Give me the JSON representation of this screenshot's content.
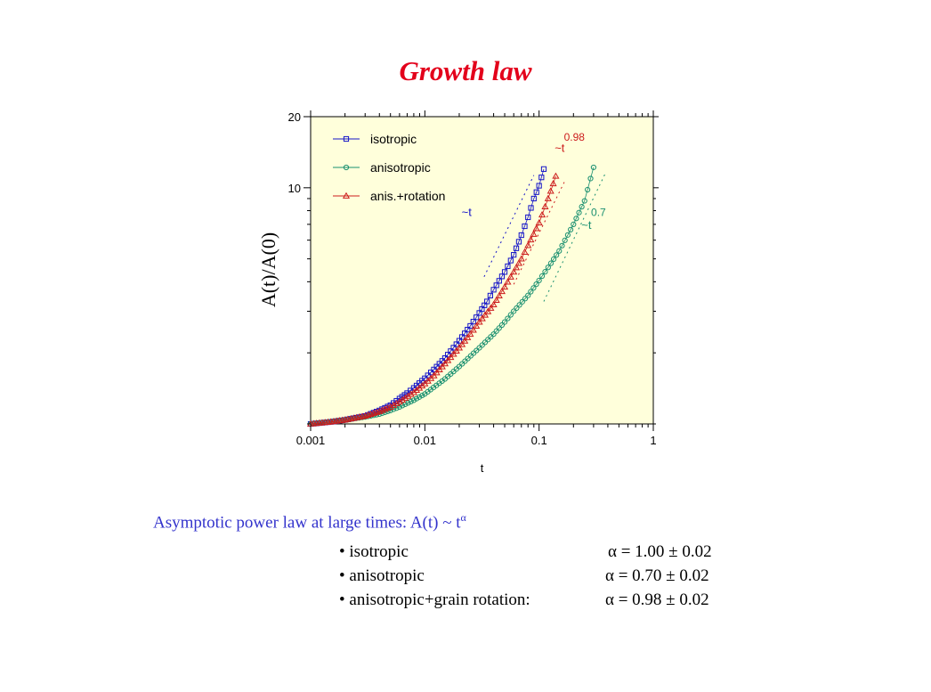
{
  "title": "Growth law",
  "chart_data": {
    "type": "scatter",
    "xscale": "log",
    "yscale": "log",
    "xlim": [
      0.001,
      1
    ],
    "ylim": [
      1,
      20
    ],
    "xlabel": "t",
    "ylabel": "A(t)/A(0)",
    "xticks": [
      "0.001",
      "0.01",
      "0.1",
      "1"
    ],
    "yticks": [
      "10",
      "20"
    ],
    "background": "#ffffdb",
    "legend_position": "top-left",
    "series": [
      {
        "name": "isotropic",
        "color": "#1414c8",
        "marker": "square",
        "points": [
          [
            0.001,
            1.0
          ],
          [
            0.0015,
            1.02
          ],
          [
            0.002,
            1.04
          ],
          [
            0.003,
            1.08
          ],
          [
            0.004,
            1.14
          ],
          [
            0.005,
            1.2
          ],
          [
            0.006,
            1.28
          ],
          [
            0.007,
            1.35
          ],
          [
            0.008,
            1.42
          ],
          [
            0.01,
            1.56
          ],
          [
            0.012,
            1.7
          ],
          [
            0.015,
            1.9
          ],
          [
            0.02,
            2.25
          ],
          [
            0.025,
            2.6
          ],
          [
            0.03,
            2.95
          ],
          [
            0.035,
            3.3
          ],
          [
            0.04,
            3.7
          ],
          [
            0.05,
            4.4
          ],
          [
            0.06,
            5.2
          ],
          [
            0.07,
            6.3
          ],
          [
            0.08,
            7.5
          ],
          [
            0.09,
            9.0
          ],
          [
            0.1,
            10.2
          ],
          [
            0.11,
            12.0
          ]
        ]
      },
      {
        "name": "anisotropic",
        "color": "#1a9070",
        "marker": "circle",
        "points": [
          [
            0.001,
            1.0
          ],
          [
            0.0015,
            1.02
          ],
          [
            0.002,
            1.04
          ],
          [
            0.003,
            1.07
          ],
          [
            0.004,
            1.1
          ],
          [
            0.005,
            1.14
          ],
          [
            0.006,
            1.18
          ],
          [
            0.008,
            1.26
          ],
          [
            0.01,
            1.34
          ],
          [
            0.015,
            1.55
          ],
          [
            0.02,
            1.75
          ],
          [
            0.03,
            2.1
          ],
          [
            0.04,
            2.4
          ],
          [
            0.05,
            2.7
          ],
          [
            0.06,
            3.0
          ],
          [
            0.08,
            3.5
          ],
          [
            0.1,
            4.05
          ],
          [
            0.12,
            4.6
          ],
          [
            0.15,
            5.4
          ],
          [
            0.2,
            7.0
          ],
          [
            0.25,
            8.8
          ],
          [
            0.3,
            12.2
          ]
        ]
      },
      {
        "name": "anis.+rotation",
        "color": "#cc1c1c",
        "marker": "triangle",
        "points": [
          [
            0.001,
            1.0
          ],
          [
            0.0015,
            1.02
          ],
          [
            0.002,
            1.04
          ],
          [
            0.003,
            1.08
          ],
          [
            0.004,
            1.13
          ],
          [
            0.005,
            1.18
          ],
          [
            0.006,
            1.24
          ],
          [
            0.008,
            1.36
          ],
          [
            0.01,
            1.48
          ],
          [
            0.012,
            1.6
          ],
          [
            0.015,
            1.8
          ],
          [
            0.02,
            2.1
          ],
          [
            0.025,
            2.4
          ],
          [
            0.03,
            2.7
          ],
          [
            0.04,
            3.2
          ],
          [
            0.05,
            3.8
          ],
          [
            0.06,
            4.4
          ],
          [
            0.07,
            5.0
          ],
          [
            0.08,
            5.7
          ],
          [
            0.1,
            7.1
          ],
          [
            0.12,
            9.0
          ],
          [
            0.14,
            11.2
          ]
        ]
      }
    ],
    "guides": [
      {
        "color": "#1414c8",
        "from": [
          0.033,
          4.2
        ],
        "to": [
          0.09,
          11.3
        ]
      },
      {
        "color": "#cc1c1c",
        "from": [
          0.06,
          3.9
        ],
        "to": [
          0.17,
          10.8
        ]
      },
      {
        "color": "#1a9070",
        "from": [
          0.11,
          3.3
        ],
        "to": [
          0.38,
          11.5
        ]
      }
    ],
    "annotations": [
      {
        "text": "~t",
        "color": "#1414c8",
        "at": [
          0.021,
          7.6
        ]
      },
      {
        "text": "~t",
        "color": "#cc1c1c",
        "at": [
          0.137,
          14.2
        ]
      },
      {
        "text": "0.98",
        "color": "#cc1c1c",
        "at": [
          0.165,
          15.8
        ],
        "superscript": true
      },
      {
        "text": "~t",
        "color": "#1a9070",
        "at": [
          0.235,
          6.7
        ]
      },
      {
        "text": "0.7",
        "color": "#1a9070",
        "at": [
          0.285,
          7.6
        ],
        "superscript": true
      }
    ]
  },
  "summary": {
    "text": "Asymptotic power law at large times: A(t) ~ t",
    "exponent_symbol": "α"
  },
  "bullets": [
    {
      "label": "• isotropic",
      "value": "α = 1.00 ± 0.02"
    },
    {
      "label": "• anisotropic",
      "value": "α = 0.70 ± 0.02"
    },
    {
      "label": "• anisotropic+grain rotation:",
      "value": "α = 0.98 ± 0.02"
    }
  ]
}
